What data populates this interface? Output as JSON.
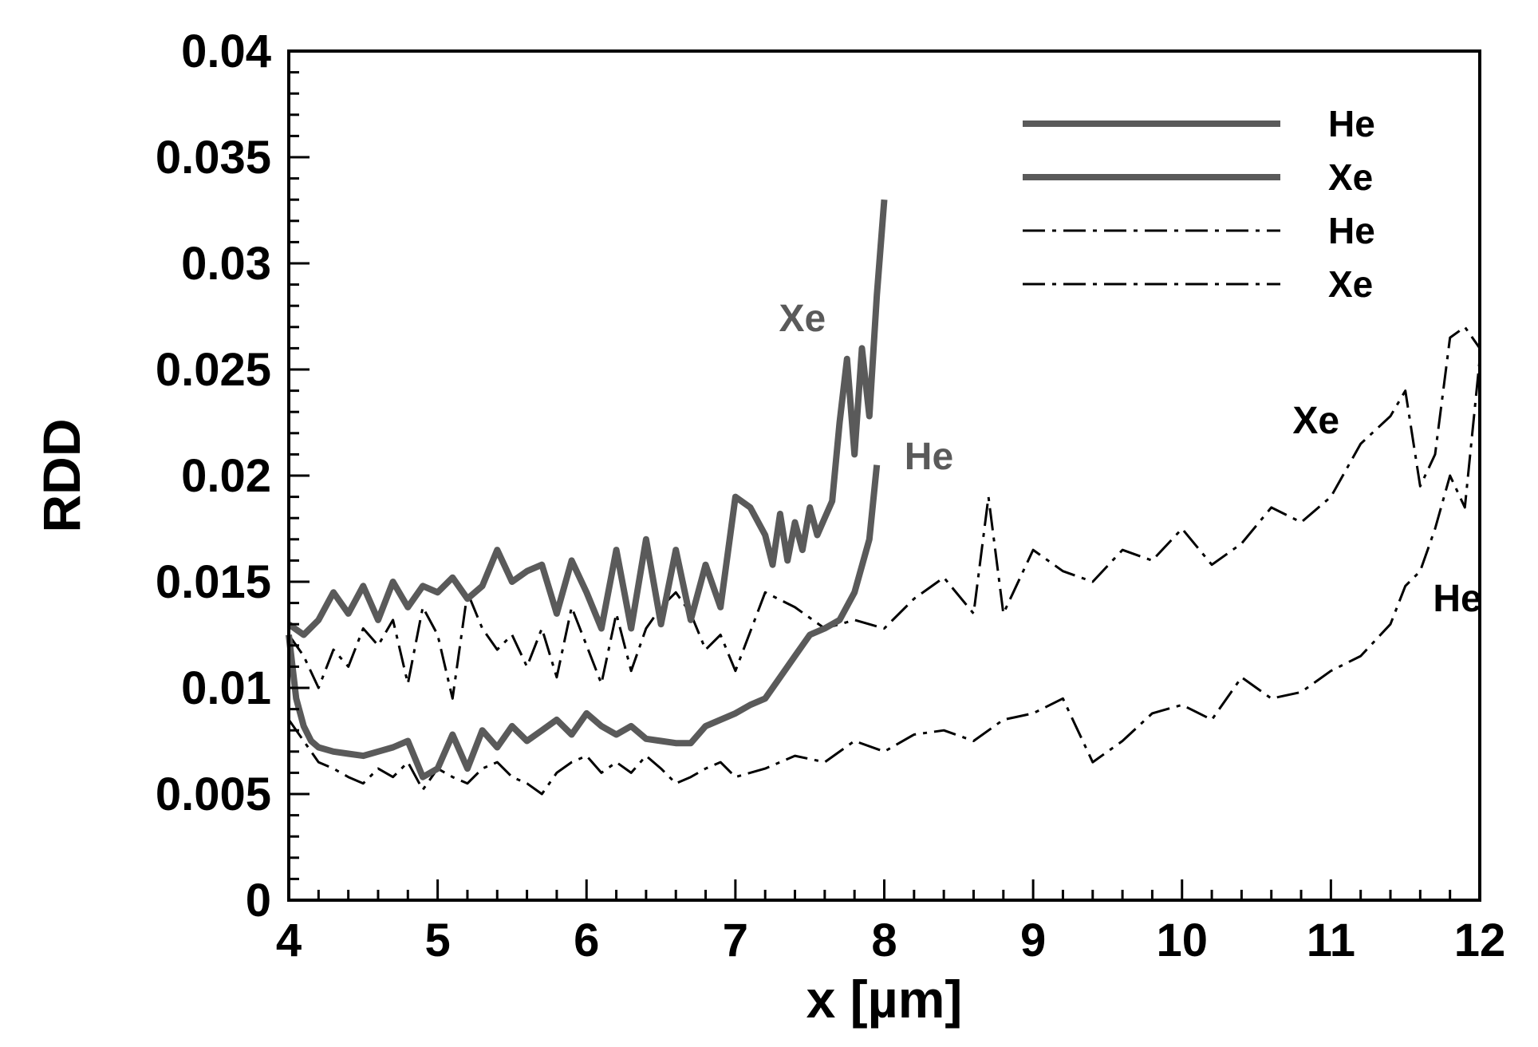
{
  "chart_data": {
    "type": "line",
    "title": "",
    "xlabel": "x [µm]",
    "ylabel": "RDD",
    "xlim": [
      4,
      12
    ],
    "ylim": [
      0,
      0.04
    ],
    "x_ticks": [
      4,
      5,
      6,
      7,
      8,
      9,
      10,
      11,
      12
    ],
    "x_tick_labels": [
      "4",
      "5",
      "6",
      "7",
      "8",
      "9",
      "10",
      "11",
      "12"
    ],
    "y_ticks": [
      0,
      0.005,
      0.01,
      0.015,
      0.02,
      0.025,
      0.03,
      0.035,
      0.04
    ],
    "y_tick_labels": [
      "0",
      "0.005",
      "0.01",
      "0.015",
      "0.02",
      "0.025",
      "0.03",
      "0.035",
      "0.04"
    ],
    "grid": false,
    "legend_position": "top-right",
    "colors": {
      "solid": "#5a5a5a",
      "dashdot": "#000000",
      "axis": "#000000"
    },
    "series": [
      {
        "name": "He",
        "style": "solid",
        "x": [
          4.0,
          4.05,
          4.1,
          4.15,
          4.2,
          4.3,
          4.4,
          4.5,
          4.6,
          4.7,
          4.8,
          4.9,
          5.0,
          5.1,
          5.2,
          5.3,
          5.4,
          5.5,
          5.6,
          5.7,
          5.8,
          5.9,
          6.0,
          6.1,
          6.2,
          6.3,
          6.4,
          6.5,
          6.6,
          6.7,
          6.8,
          6.9,
          7.0,
          7.1,
          7.2,
          7.3,
          7.4,
          7.5,
          7.6,
          7.7,
          7.8,
          7.9,
          7.95
        ],
        "y": [
          0.0125,
          0.0095,
          0.0082,
          0.0075,
          0.0072,
          0.007,
          0.0069,
          0.0068,
          0.007,
          0.0072,
          0.0075,
          0.0058,
          0.0062,
          0.0078,
          0.0062,
          0.008,
          0.0072,
          0.0082,
          0.0075,
          0.008,
          0.0085,
          0.0078,
          0.0088,
          0.0082,
          0.0078,
          0.0082,
          0.0076,
          0.0075,
          0.0074,
          0.0074,
          0.0082,
          0.0085,
          0.0088,
          0.0092,
          0.0095,
          0.0105,
          0.0115,
          0.0125,
          0.0128,
          0.0132,
          0.0145,
          0.017,
          0.0205
        ]
      },
      {
        "name": "Xe",
        "style": "solid",
        "x": [
          4.0,
          4.1,
          4.2,
          4.3,
          4.4,
          4.5,
          4.6,
          4.7,
          4.8,
          4.9,
          5.0,
          5.1,
          5.2,
          5.3,
          5.4,
          5.5,
          5.6,
          5.7,
          5.8,
          5.9,
          6.0,
          6.1,
          6.2,
          6.3,
          6.4,
          6.5,
          6.6,
          6.7,
          6.8,
          6.9,
          7.0,
          7.1,
          7.2,
          7.25,
          7.3,
          7.35,
          7.4,
          7.45,
          7.5,
          7.55,
          7.6,
          7.65,
          7.7,
          7.75,
          7.8,
          7.85,
          7.9,
          7.95,
          8.0
        ],
        "y": [
          0.013,
          0.0125,
          0.0132,
          0.0145,
          0.0135,
          0.0148,
          0.0132,
          0.015,
          0.0138,
          0.0148,
          0.0145,
          0.0152,
          0.0142,
          0.0148,
          0.0165,
          0.015,
          0.0155,
          0.0158,
          0.0135,
          0.016,
          0.0145,
          0.0128,
          0.0165,
          0.0128,
          0.017,
          0.013,
          0.0165,
          0.0132,
          0.0158,
          0.0138,
          0.019,
          0.0185,
          0.0172,
          0.0158,
          0.0182,
          0.016,
          0.0178,
          0.0165,
          0.0185,
          0.0172,
          0.018,
          0.0188,
          0.0225,
          0.0255,
          0.021,
          0.026,
          0.0228,
          0.0285,
          0.033
        ]
      },
      {
        "name": "He",
        "style": "dashdot",
        "x": [
          4.0,
          4.1,
          4.2,
          4.3,
          4.4,
          4.5,
          4.6,
          4.7,
          4.8,
          4.9,
          5.0,
          5.1,
          5.2,
          5.3,
          5.4,
          5.5,
          5.6,
          5.7,
          5.8,
          5.9,
          6.0,
          6.1,
          6.2,
          6.3,
          6.4,
          6.5,
          6.6,
          6.7,
          6.8,
          6.9,
          7.0,
          7.2,
          7.4,
          7.6,
          7.8,
          8.0,
          8.2,
          8.4,
          8.6,
          8.8,
          9.0,
          9.2,
          9.4,
          9.6,
          9.8,
          10.0,
          10.2,
          10.4,
          10.6,
          10.8,
          11.0,
          11.2,
          11.4,
          11.5,
          11.6,
          11.7,
          11.8,
          11.9,
          12.0
        ],
        "y": [
          0.0085,
          0.0075,
          0.0065,
          0.0062,
          0.0058,
          0.0055,
          0.0062,
          0.0058,
          0.0065,
          0.0052,
          0.0062,
          0.0058,
          0.0055,
          0.0062,
          0.0065,
          0.0058,
          0.0055,
          0.005,
          0.006,
          0.0065,
          0.0068,
          0.006,
          0.0065,
          0.006,
          0.0068,
          0.0062,
          0.0055,
          0.0058,
          0.0062,
          0.0065,
          0.0058,
          0.0062,
          0.0068,
          0.0065,
          0.0075,
          0.007,
          0.0078,
          0.008,
          0.0075,
          0.0085,
          0.0088,
          0.0095,
          0.0065,
          0.0075,
          0.0088,
          0.0092,
          0.0085,
          0.0105,
          0.0095,
          0.0098,
          0.0108,
          0.0115,
          0.013,
          0.0148,
          0.0155,
          0.0175,
          0.02,
          0.0185,
          0.0255
        ]
      },
      {
        "name": "Xe",
        "style": "dashdot",
        "x": [
          4.0,
          4.1,
          4.2,
          4.3,
          4.4,
          4.5,
          4.6,
          4.7,
          4.8,
          4.9,
          5.0,
          5.1,
          5.2,
          5.3,
          5.4,
          5.5,
          5.6,
          5.7,
          5.8,
          5.9,
          6.0,
          6.1,
          6.2,
          6.3,
          6.4,
          6.5,
          6.6,
          6.7,
          6.8,
          6.9,
          7.0,
          7.2,
          7.4,
          7.6,
          7.8,
          8.0,
          8.2,
          8.4,
          8.6,
          8.7,
          8.8,
          9.0,
          9.2,
          9.4,
          9.6,
          9.8,
          10.0,
          10.2,
          10.4,
          10.6,
          10.8,
          11.0,
          11.2,
          11.4,
          11.5,
          11.6,
          11.7,
          11.8,
          11.9,
          12.0
        ],
        "y": [
          0.0125,
          0.0115,
          0.01,
          0.0118,
          0.011,
          0.0128,
          0.012,
          0.0132,
          0.0102,
          0.0138,
          0.0125,
          0.0095,
          0.0145,
          0.0128,
          0.0118,
          0.0125,
          0.011,
          0.0128,
          0.0105,
          0.0138,
          0.012,
          0.0102,
          0.0135,
          0.0108,
          0.0128,
          0.0138,
          0.0145,
          0.0135,
          0.0118,
          0.0125,
          0.0108,
          0.0145,
          0.0138,
          0.0128,
          0.0132,
          0.0128,
          0.0142,
          0.0152,
          0.0135,
          0.019,
          0.0135,
          0.0165,
          0.0155,
          0.015,
          0.0165,
          0.016,
          0.0175,
          0.0158,
          0.0168,
          0.0185,
          0.0178,
          0.019,
          0.0215,
          0.0228,
          0.024,
          0.0195,
          0.021,
          0.0265,
          0.027,
          0.026
        ]
      }
    ],
    "legend": [
      {
        "label": "He",
        "style": "solid"
      },
      {
        "label": "Xe",
        "style": "solid"
      },
      {
        "label": "He",
        "style": "dashdot"
      },
      {
        "label": "Xe",
        "style": "dashdot"
      }
    ],
    "annotations": [
      {
        "text": "Xe",
        "x": 7.45,
        "y": 0.0268,
        "style": "solid"
      },
      {
        "text": "He",
        "x": 8.3,
        "y": 0.0203,
        "style": "solid"
      },
      {
        "text": "Xe",
        "x": 10.9,
        "y": 0.022,
        "style": "dashdot"
      },
      {
        "text": "He",
        "x": 11.85,
        "y": 0.0136,
        "style": "dashdot"
      }
    ]
  }
}
